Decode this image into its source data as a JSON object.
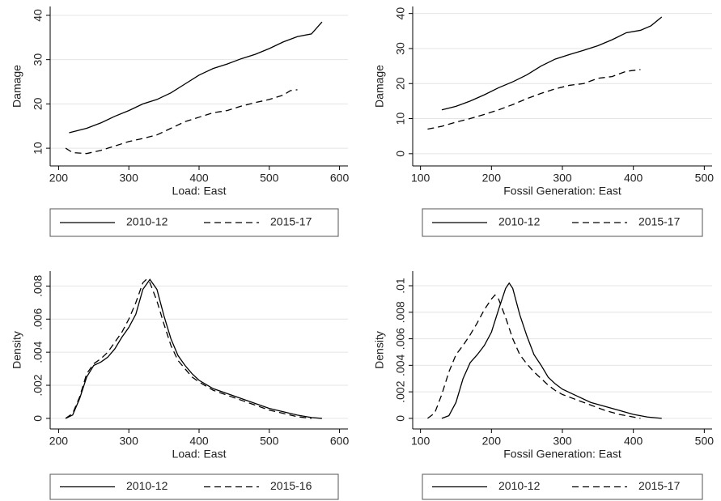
{
  "chart_data": [
    {
      "type": "line",
      "x_label": "Load: East",
      "y_label": "Damage",
      "xlim": [
        188,
        612
      ],
      "ylim": [
        6,
        42
      ],
      "xticks": [
        200,
        300,
        400,
        500,
        600
      ],
      "yticks": [
        10,
        20,
        30,
        40
      ],
      "grid": true,
      "series": [
        {
          "name": "2010-12",
          "color": "#000000",
          "style": "solid",
          "x": [
            215,
            240,
            260,
            280,
            300,
            320,
            340,
            360,
            380,
            400,
            420,
            440,
            460,
            480,
            500,
            520,
            540,
            560,
            575
          ],
          "values": [
            13.5,
            14.5,
            15.7,
            17.2,
            18.5,
            20,
            21,
            22.5,
            24.5,
            26.5,
            28,
            29,
            30.2,
            31.2,
            32.5,
            34,
            35.2,
            35.8,
            38.5
          ]
        },
        {
          "name": "2015-17",
          "color": "#000000",
          "style": "dashed",
          "x": [
            210,
            220,
            240,
            260,
            280,
            300,
            320,
            340,
            360,
            380,
            400,
            420,
            440,
            460,
            480,
            500,
            520,
            530,
            540
          ],
          "values": [
            10,
            9,
            8.8,
            9.5,
            10.5,
            11.5,
            12.2,
            13,
            14.5,
            16,
            17,
            18,
            18.5,
            19.5,
            20.3,
            21,
            22,
            23,
            23.2
          ]
        }
      ]
    },
    {
      "type": "line",
      "x_label": "Fossil Generation: East",
      "y_label": "Damage",
      "xlim": [
        89,
        511
      ],
      "ylim": [
        -3.5,
        42
      ],
      "xticks": [
        100,
        200,
        300,
        400,
        500
      ],
      "yticks": [
        0,
        10,
        20,
        30,
        40
      ],
      "grid": true,
      "series": [
        {
          "name": "2010-12",
          "color": "#000000",
          "style": "solid",
          "x": [
            130,
            150,
            170,
            190,
            210,
            230,
            250,
            270,
            290,
            310,
            330,
            350,
            370,
            390,
            410,
            425,
            440
          ],
          "values": [
            12.5,
            13.5,
            15,
            16.8,
            18.8,
            20.5,
            22.5,
            25,
            27,
            28.3,
            29.5,
            30.8,
            32.5,
            34.5,
            35.2,
            36.5,
            39
          ]
        },
        {
          "name": "2015-17",
          "color": "#000000",
          "style": "dashed",
          "x": [
            110,
            130,
            150,
            170,
            190,
            210,
            230,
            250,
            270,
            290,
            310,
            330,
            350,
            370,
            390,
            410
          ],
          "values": [
            7,
            7.8,
            9,
            10,
            11.2,
            12.5,
            14,
            15.7,
            17.2,
            18.5,
            19.5,
            20,
            21.5,
            22,
            23.5,
            24
          ]
        }
      ]
    },
    {
      "type": "line",
      "x_label": "Load: East",
      "y_label": "Density",
      "xlim": [
        188,
        612
      ],
      "ylim": [
        -0.00064,
        0.0089
      ],
      "xticks": [
        200,
        300,
        400,
        500,
        600
      ],
      "yticks": [
        0,
        {
          "value": 0.002,
          "label": ".002"
        },
        {
          "value": 0.004,
          "label": ".004"
        },
        {
          "value": 0.006,
          "label": ".006"
        },
        {
          "value": 0.008,
          "label": ".008"
        }
      ],
      "grid": true,
      "series": [
        {
          "name": "2010-12",
          "color": "#000000",
          "style": "solid",
          "x": [
            210,
            220,
            230,
            240,
            250,
            260,
            270,
            280,
            290,
            300,
            310,
            320,
            330,
            340,
            350,
            360,
            370,
            380,
            390,
            400,
            420,
            440,
            460,
            480,
            500,
            520,
            540,
            560,
            575
          ],
          "values": [
            0,
            0.0002,
            0.0012,
            0.0025,
            0.0032,
            0.0034,
            0.0037,
            0.0042,
            0.0049,
            0.0055,
            0.0063,
            0.0078,
            0.0084,
            0.0078,
            0.0062,
            0.0048,
            0.0038,
            0.0032,
            0.0027,
            0.0023,
            0.0018,
            0.0015,
            0.0012,
            0.0009,
            0.0006,
            0.0004,
            0.0002,
            5e-05,
            0
          ]
        },
        {
          "name": "2015-16",
          "color": "#000000",
          "style": "dashed",
          "x": [
            210,
            220,
            230,
            240,
            250,
            260,
            270,
            280,
            290,
            300,
            310,
            320,
            325,
            330,
            340,
            350,
            360,
            370,
            380,
            390,
            400,
            420,
            440,
            460,
            480,
            500,
            520,
            540,
            560
          ],
          "values": [
            0,
            0.0003,
            0.0013,
            0.0027,
            0.0033,
            0.0036,
            0.004,
            0.0046,
            0.0052,
            0.006,
            0.007,
            0.0082,
            0.0084,
            0.0082,
            0.0071,
            0.0057,
            0.0044,
            0.0035,
            0.003,
            0.0025,
            0.0022,
            0.0017,
            0.0014,
            0.0011,
            0.0008,
            0.0005,
            0.0003,
            0.0001,
            0
          ]
        }
      ]
    },
    {
      "type": "line",
      "x_label": "Fossil Generation: East",
      "y_label": "Density",
      "xlim": [
        89,
        511
      ],
      "ylim": [
        -0.0008,
        0.0111
      ],
      "xticks": [
        100,
        200,
        300,
        400,
        500
      ],
      "yticks": [
        0,
        {
          "value": 0.002,
          "label": ".002"
        },
        {
          "value": 0.004,
          "label": ".004"
        },
        {
          "value": 0.006,
          "label": ".006"
        },
        {
          "value": 0.008,
          "label": ".008"
        },
        {
          "value": 0.01,
          "label": ".01"
        }
      ],
      "grid": true,
      "series": [
        {
          "name": "2010-12",
          "color": "#000000",
          "style": "solid",
          "x": [
            130,
            140,
            150,
            160,
            170,
            180,
            190,
            200,
            210,
            220,
            225,
            230,
            240,
            250,
            260,
            270,
            280,
            290,
            300,
            320,
            340,
            360,
            380,
            400,
            420,
            440
          ],
          "values": [
            0,
            0.0002,
            0.0012,
            0.003,
            0.0042,
            0.0048,
            0.0055,
            0.0065,
            0.0082,
            0.0098,
            0.0102,
            0.0098,
            0.0078,
            0.0062,
            0.0048,
            0.004,
            0.0031,
            0.0026,
            0.0022,
            0.0017,
            0.0012,
            0.0009,
            0.0006,
            0.0003,
            0.0001,
            0
          ]
        },
        {
          "name": "2015-17",
          "color": "#000000",
          "style": "dashed",
          "x": [
            110,
            120,
            130,
            140,
            150,
            160,
            170,
            180,
            190,
            200,
            205,
            210,
            220,
            230,
            240,
            250,
            260,
            270,
            280,
            290,
            300,
            320,
            340,
            360,
            380,
            400,
            410
          ],
          "values": [
            0,
            0.0004,
            0.0018,
            0.0035,
            0.0048,
            0.0055,
            0.0063,
            0.0072,
            0.0082,
            0.009,
            0.0093,
            0.009,
            0.0076,
            0.006,
            0.0048,
            0.0041,
            0.0035,
            0.003,
            0.0025,
            0.0021,
            0.0018,
            0.0014,
            0.001,
            0.0006,
            0.0003,
            0.0001,
            0
          ]
        }
      ]
    }
  ]
}
